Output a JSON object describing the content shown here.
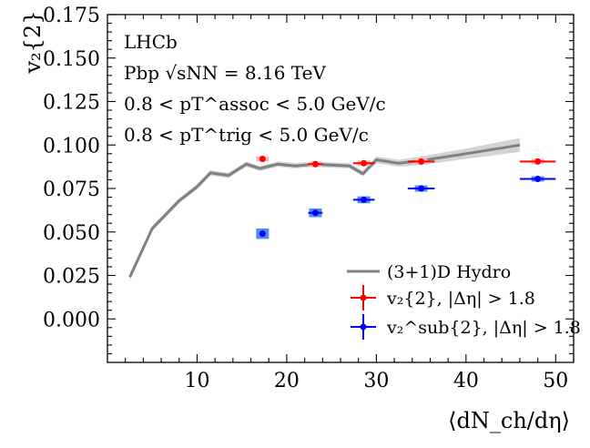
{
  "chart_data": {
    "type": "scatter",
    "title": "",
    "xlabel": "⟨dN_ch/dη⟩",
    "ylabel": "v₂{2}",
    "xlim": [
      0,
      52
    ],
    "ylim": [
      -0.025,
      0.175
    ],
    "x_ticks": [
      10,
      20,
      30,
      40,
      50
    ],
    "y_ticks": [
      0.0,
      0.025,
      0.05,
      0.075,
      0.1,
      0.125,
      0.15,
      0.175
    ],
    "y_tick_labels": [
      "0.000",
      "0.025",
      "0.050",
      "0.075",
      "0.100",
      "0.125",
      "0.150",
      "0.175"
    ],
    "annotations": [
      "LHCb",
      "Pbp √sNN = 8.16 TeV",
      "0.8 < pT^assoc < 5.0 GeV/c",
      "0.8 < pT^trig < 5.0 GeV/c"
    ],
    "legend_position": "bottom-right",
    "series": [
      {
        "name": "(3+1)D Hydro",
        "kind": "line-band",
        "color": "#808080",
        "band_color": "#d3d3d3",
        "x": [
          2.5,
          5,
          8,
          10,
          11.5,
          13.5,
          15.5,
          17,
          19,
          21,
          23,
          25,
          27,
          28.5,
          30,
          32.5,
          35,
          40,
          46
        ],
        "y": [
          0.024,
          0.052,
          0.068,
          0.076,
          0.084,
          0.0825,
          0.089,
          0.0865,
          0.089,
          0.088,
          0.089,
          0.0885,
          0.088,
          0.0835,
          0.0915,
          0.0895,
          0.091,
          0.095,
          0.1
        ],
        "band": [
          0.002,
          0.0015,
          0.0015,
          0.0015,
          0.0015,
          0.0015,
          0.0015,
          0.0015,
          0.0015,
          0.0015,
          0.0015,
          0.0015,
          0.0015,
          0.0015,
          0.002,
          0.002,
          0.0025,
          0.003,
          0.004
        ]
      },
      {
        "name": "v₂{2}, |Δη| > 1.8",
        "kind": "points",
        "color": "#ff0000",
        "syst_color": "#ffb3b3",
        "x": [
          17.3,
          23.2,
          28.6,
          35.0,
          48.0
        ],
        "y": [
          0.092,
          0.089,
          0.0895,
          0.0905,
          0.0905
        ],
        "xerr": [
          0.3,
          0.8,
          1.2,
          1.5,
          2.0
        ],
        "yerr": [
          0.001,
          0.001,
          0.001,
          0.001,
          0.001
        ],
        "syst": [
          0.0015,
          0.0015,
          0.0015,
          0.0015,
          0.0015
        ]
      },
      {
        "name": "v₂^sub{2}, |Δη| > 1.8",
        "kind": "points",
        "color": "#0000ff",
        "syst_color": "#4f8ee8",
        "x": [
          17.3,
          23.2,
          28.6,
          35.0,
          48.0
        ],
        "y": [
          0.049,
          0.061,
          0.0685,
          0.075,
          0.0805
        ],
        "xerr": [
          0.3,
          0.8,
          1.2,
          1.5,
          2.0
        ],
        "yerr": [
          0.0008,
          0.0008,
          0.0008,
          0.0008,
          0.0008
        ],
        "syst": [
          0.003,
          0.0025,
          0.002,
          0.0018,
          0.0015
        ]
      }
    ]
  }
}
